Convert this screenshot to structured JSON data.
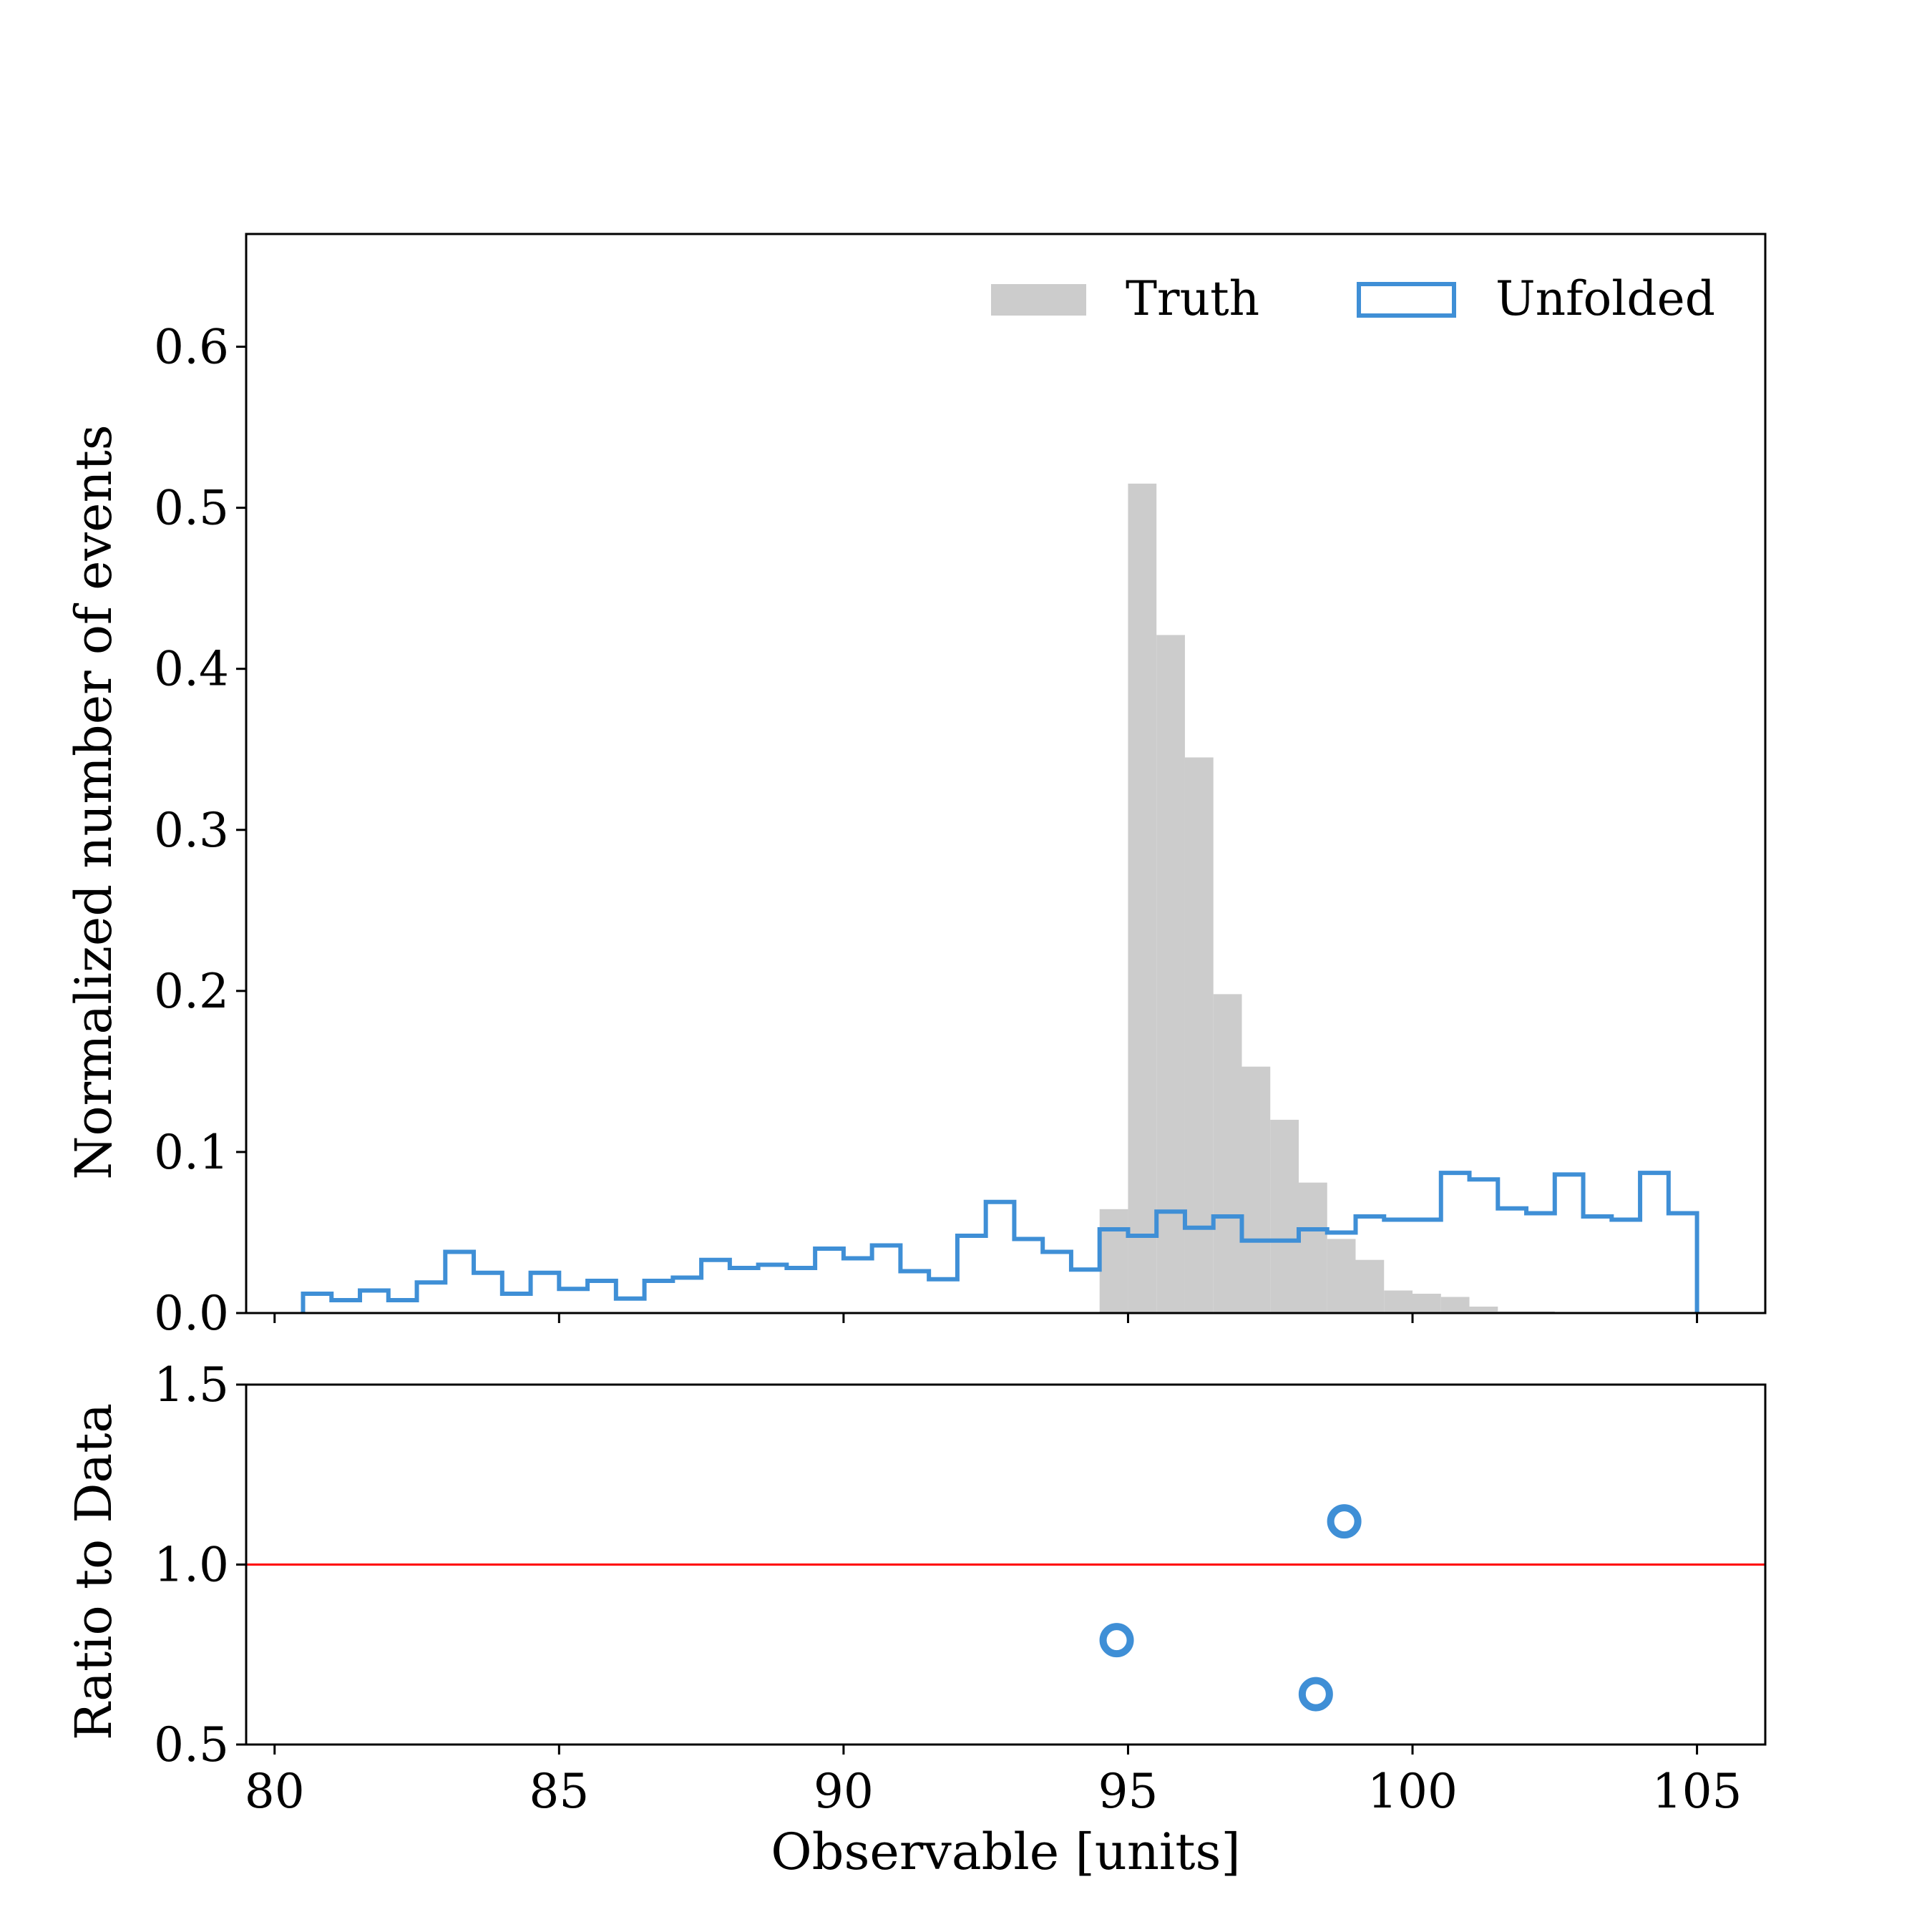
{
  "chart_data": [
    {
      "panel": "main",
      "type": "histogram",
      "xlim": [
        79.5,
        106.2
      ],
      "ylim": [
        0,
        0.67
      ],
      "ylabel": "Normalized number of events",
      "yticks": [
        "0.0",
        "0.1",
        "0.2",
        "0.3",
        "0.4",
        "0.5",
        "0.6"
      ],
      "ytick_values": [
        0,
        0.1,
        0.2,
        0.3,
        0.4,
        0.5,
        0.6
      ],
      "legend": {
        "placement": "top-right",
        "truth_label": "Truth",
        "unfolded_label": "Unfolded"
      },
      "bin_edges": [
        80.5,
        81.0,
        81.5,
        82.0,
        82.5,
        83.0,
        83.5,
        84.0,
        84.5,
        85.0,
        85.5,
        86.0,
        86.5,
        87.0,
        87.5,
        88.0,
        88.5,
        89.0,
        89.5,
        90.0,
        90.5,
        91.0,
        91.5,
        92.0,
        92.5,
        93.0,
        93.5,
        94.0,
        94.5,
        95.0,
        95.5,
        96.0,
        96.5,
        97.0,
        97.5,
        98.0,
        98.5,
        99.0,
        99.5,
        100.0,
        100.5,
        101.0,
        101.5,
        102.0,
        102.5,
        103.0,
        103.5,
        104.0,
        104.5,
        105.0
      ],
      "series": [
        {
          "name": "Truth",
          "style": "filled",
          "color": "#cccccc",
          "values": [
            0,
            0,
            0,
            0,
            0,
            0,
            0,
            0,
            0,
            0,
            0,
            0,
            0,
            0,
            0,
            0,
            0,
            0,
            0,
            0,
            0,
            0,
            0,
            0,
            0,
            0,
            0,
            0,
            0.0645,
            0.515,
            0.421,
            0.345,
            0.198,
            0.153,
            0.12,
            0.081,
            0.046,
            0.033,
            0.014,
            0.012,
            0.01,
            0.004,
            0.001,
            0.001,
            0,
            0,
            0,
            0,
            0,
            0
          ]
        },
        {
          "name": "Unfolded",
          "style": "step",
          "color": "#3f8fd6",
          "values": [
            0.012,
            0.008,
            0.014,
            0.008,
            0.019,
            0.038,
            0.025,
            0.012,
            0.025,
            0.015,
            0.02,
            0.009,
            0.02,
            0.022,
            0.033,
            0.028,
            0.03,
            0.028,
            0.04,
            0.034,
            0.042,
            0.026,
            0.021,
            0.048,
            0.069,
            0.046,
            0.038,
            0.027,
            0.052,
            0.048,
            0.063,
            0.053,
            0.06,
            0.045,
            0.045,
            0.052,
            0.05,
            0.06,
            0.058,
            0.058,
            0.087,
            0.083,
            0.065,
            0.062,
            0.086,
            0.06,
            0.058,
            0.087,
            0.062,
            0
          ]
        }
      ]
    },
    {
      "panel": "ratio",
      "type": "scatter",
      "xlim": [
        79.5,
        106.2
      ],
      "ylim": [
        0.5,
        1.5
      ],
      "xlabel": "Observable [units]",
      "ylabel": "Ratio to Data",
      "xticks": [
        "80",
        "85",
        "90",
        "95",
        "100",
        "105"
      ],
      "xtick_values": [
        80,
        85,
        90,
        95,
        100,
        105
      ],
      "yticks": [
        "0.5",
        "1.0",
        "1.5"
      ],
      "ytick_values": [
        0.5,
        1.0,
        1.5
      ],
      "reference_line": {
        "y": 1.0,
        "color": "#ff0000"
      },
      "marker_color": "#3f8fd6",
      "points": [
        {
          "x": 94.8,
          "y": 0.79
        },
        {
          "x": 98.3,
          "y": 0.64
        },
        {
          "x": 98.8,
          "y": 1.12
        }
      ]
    }
  ]
}
